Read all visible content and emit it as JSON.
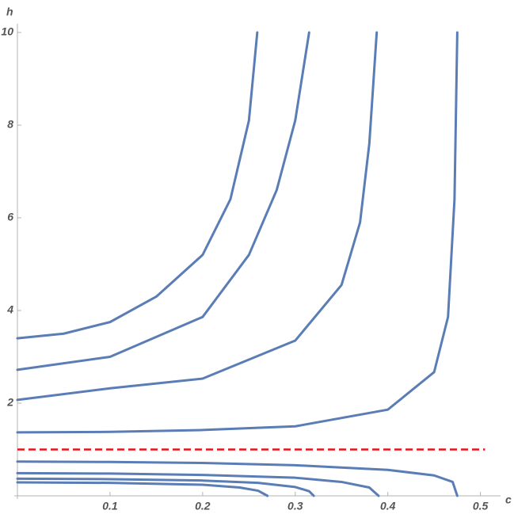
{
  "chart_data": {
    "type": "line",
    "x_label": "c",
    "y_label": "h",
    "xlim": [
      0,
      0.52
    ],
    "ylim": [
      0,
      10
    ],
    "xticks": [
      0.1,
      0.2,
      0.3,
      0.4,
      0.5
    ],
    "yticks": [
      2,
      4,
      6,
      8,
      10
    ],
    "series": [
      {
        "color": "#5b7db5",
        "x": [
          0,
          0.05,
          0.1,
          0.15,
          0.2,
          0.23,
          0.25,
          0.259
        ],
        "values": [
          3.4,
          3.5,
          3.75,
          4.3,
          5.2,
          6.4,
          8.1,
          10
        ]
      },
      {
        "color": "#5b7db5",
        "x": [
          0,
          0.1,
          0.2,
          0.25,
          0.28,
          0.3,
          0.315
        ],
        "values": [
          2.72,
          3.0,
          3.86,
          5.2,
          6.6,
          8.1,
          10
        ]
      },
      {
        "color": "#5b7db5",
        "x": [
          0,
          0.1,
          0.2,
          0.3,
          0.35,
          0.37,
          0.38,
          0.388
        ],
        "values": [
          2.07,
          2.32,
          2.53,
          3.35,
          4.55,
          5.9,
          7.6,
          10
        ]
      },
      {
        "color": "#5b7db5",
        "x": [
          0,
          0.1,
          0.2,
          0.3,
          0.4,
          0.45,
          0.465,
          0.472,
          0.475
        ],
        "values": [
          1.37,
          1.38,
          1.42,
          1.5,
          1.86,
          2.67,
          3.86,
          6.4,
          10
        ]
      },
      {
        "color": "#5b7db5",
        "x": [
          0,
          0.1,
          0.2,
          0.3,
          0.4,
          0.45,
          0.47,
          0.475
        ],
        "values": [
          0.74,
          0.73,
          0.71,
          0.66,
          0.56,
          0.44,
          0.3,
          0
        ]
      },
      {
        "color": "#5b7db5",
        "x": [
          0,
          0.1,
          0.2,
          0.3,
          0.35,
          0.38,
          0.39
        ],
        "values": [
          0.49,
          0.48,
          0.45,
          0.39,
          0.3,
          0.18,
          0
        ]
      },
      {
        "color": "#5b7db5",
        "x": [
          0,
          0.1,
          0.2,
          0.26,
          0.3,
          0.315,
          0.32
        ],
        "values": [
          0.37,
          0.36,
          0.33,
          0.28,
          0.19,
          0.1,
          0
        ]
      },
      {
        "color": "#5b7db5",
        "x": [
          0,
          0.1,
          0.2,
          0.24,
          0.26,
          0.27
        ],
        "values": [
          0.29,
          0.28,
          0.24,
          0.18,
          0.11,
          0
        ]
      },
      {
        "color": "#e0161d",
        "dashed": true,
        "x": [
          0,
          0.505
        ],
        "values": [
          1,
          1
        ]
      }
    ]
  }
}
